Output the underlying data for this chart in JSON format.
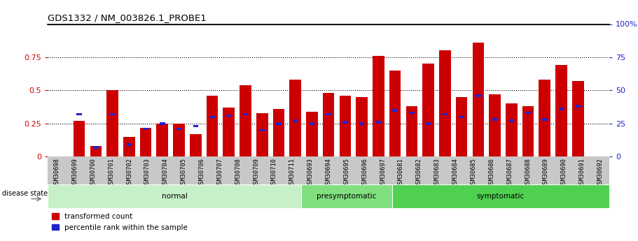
{
  "title": "GDS1332 / NM_003826.1_PROBE1",
  "categories": [
    "GSM30698",
    "GSM30699",
    "GSM30700",
    "GSM30701",
    "GSM30702",
    "GSM30703",
    "GSM30704",
    "GSM30705",
    "GSM30706",
    "GSM30707",
    "GSM30708",
    "GSM30709",
    "GSM30710",
    "GSM30711",
    "GSM30693",
    "GSM30694",
    "GSM30695",
    "GSM30696",
    "GSM30697",
    "GSM30681",
    "GSM30682",
    "GSM30683",
    "GSM30684",
    "GSM30685",
    "GSM30686",
    "GSM30687",
    "GSM30688",
    "GSM30689",
    "GSM30690",
    "GSM30691",
    "GSM30692"
  ],
  "red_values": [
    0.27,
    0.08,
    0.5,
    0.15,
    0.22,
    0.25,
    0.25,
    0.17,
    0.46,
    0.37,
    0.54,
    0.33,
    0.36,
    0.58,
    0.34,
    0.48,
    0.46,
    0.45,
    0.76,
    0.65,
    0.38,
    0.7,
    0.8,
    0.45,
    0.86,
    0.47,
    0.4,
    0.38,
    0.58,
    0.69,
    0.57
  ],
  "blue_values": [
    0.32,
    0.07,
    0.32,
    0.09,
    0.21,
    0.25,
    0.21,
    0.23,
    0.3,
    0.31,
    0.32,
    0.2,
    0.25,
    0.27,
    0.25,
    0.32,
    0.26,
    0.25,
    0.26,
    0.35,
    0.33,
    0.25,
    0.32,
    0.3,
    0.46,
    0.28,
    0.27,
    0.33,
    0.28,
    0.36,
    0.38
  ],
  "groups": [
    {
      "label": "normal",
      "start": 0,
      "end": 13,
      "color": "#c8f0c8"
    },
    {
      "label": "presymptomatic",
      "start": 14,
      "end": 18,
      "color": "#80e080"
    },
    {
      "label": "symptomatic",
      "start": 19,
      "end": 30,
      "color": "#50d050"
    }
  ],
  "ylim_left": [
    0,
    1.0
  ],
  "ylim_right": [
    0,
    100
  ],
  "yticks_left": [
    0,
    0.25,
    0.5,
    0.75
  ],
  "ytick_labels_left": [
    "0",
    "0.25",
    "0.5",
    "0.75"
  ],
  "yticks_right": [
    0,
    25,
    50,
    75,
    100
  ],
  "ytick_labels_right": [
    "0",
    "25",
    "50",
    "75",
    "100%"
  ],
  "bar_color_red": "#cc0000",
  "bar_color_blue": "#2222cc",
  "ylabel_left_color": "#cc0000",
  "ylabel_right_color": "#2222cc",
  "legend_red": "transformed count",
  "legend_blue": "percentile rank within the sample",
  "disease_state_label": "disease state"
}
